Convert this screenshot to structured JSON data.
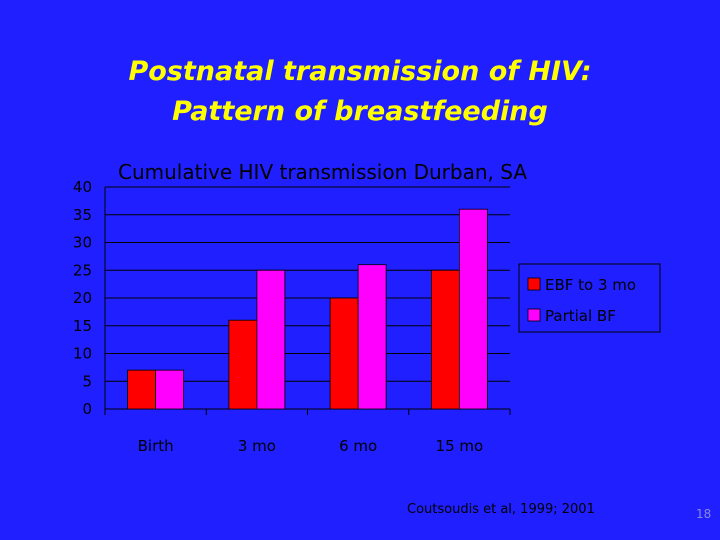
{
  "slide": {
    "title_line1": "Postnatal transmission of HIV:",
    "title_line2": "Pattern of breastfeeding",
    "source": "Coutsoudis et al, 1999; 2001",
    "slide_number": "18"
  },
  "colors": {
    "background": "#1f1fff",
    "title": "#ffff00",
    "plot_area": "#1f1fff",
    "series1": "#ff0000",
    "series2": "#ff00ff"
  },
  "chart_data": {
    "type": "bar",
    "title": "Cumulative HIV transmission Durban, SA",
    "categories": [
      "Birth",
      "3 mo",
      "6 mo",
      "15 mo"
    ],
    "series": [
      {
        "name": "EBF to 3 mo",
        "values": [
          7,
          16,
          20,
          25
        ]
      },
      {
        "name": "Partial BF",
        "values": [
          7,
          25,
          26,
          36
        ]
      }
    ],
    "ylim": [
      0,
      40
    ],
    "yticks": [
      "0",
      "5",
      "10",
      "15",
      "20",
      "25",
      "30",
      "35",
      "40"
    ],
    "grid": true,
    "legend": "right"
  }
}
